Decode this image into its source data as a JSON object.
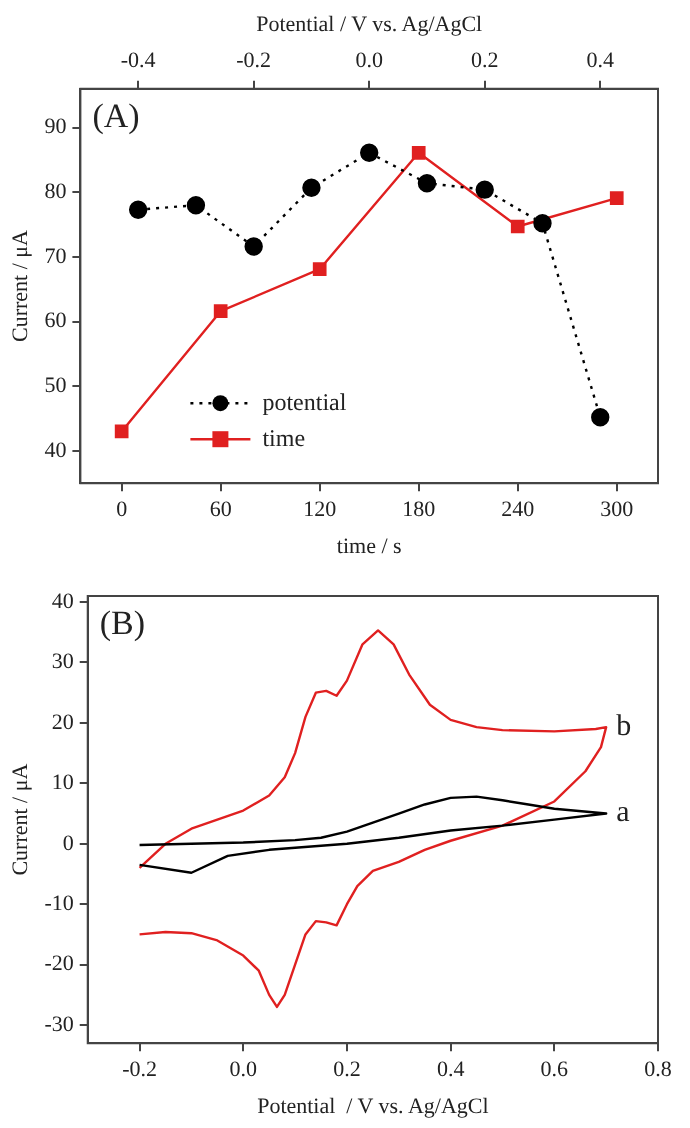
{
  "chart_data": [
    {
      "type": "line",
      "annotations": [
        "(A)"
      ],
      "xlabel": "time / s",
      "x2label": "Potential / V vs. Ag/AgCl",
      "ylabel": "Current / μA",
      "xlim": [
        -25,
        325
      ],
      "xticks": [
        0,
        60,
        120,
        180,
        240,
        300
      ],
      "x2lim": [
        -0.5,
        0.5
      ],
      "x2ticks": [
        -0.4,
        -0.2,
        {
          "value": 0,
          "label": "0.0"
        },
        0.2,
        0.4
      ],
      "ylim": [
        35,
        96
      ],
      "yticks": [
        40,
        50,
        60,
        70,
        80,
        90
      ],
      "grid": false,
      "legend": "bottom left",
      "series": [
        {
          "name": "potential",
          "color": "#000000",
          "axis": "x2",
          "marker": "circle",
          "line_style": "dotted",
          "x": [
            -0.4,
            -0.3,
            -0.2,
            -0.1,
            0.0,
            0.1,
            0.2,
            0.3,
            0.4
          ],
          "values": [
            77.3,
            78.0,
            71.6,
            80.7,
            86.1,
            81.4,
            80.4,
            75.2,
            45.2
          ]
        },
        {
          "name": "time",
          "color": "#e02020",
          "marker": "square",
          "line_style": "solid",
          "x": [
            0,
            60,
            120,
            180,
            240,
            300
          ],
          "values": [
            43.0,
            61.6,
            68.1,
            86.1,
            74.7,
            79.1
          ]
        }
      ]
    },
    {
      "type": "line",
      "annotations": [
        "(B)"
      ],
      "xlabel": "Potential  / V vs. Ag/AgCl",
      "ylabel": "Current / μA",
      "xlim": [
        -0.3,
        0.8
      ],
      "xticks": [
        -0.2,
        {
          "value": 0,
          "label": "0.0"
        },
        0.2,
        0.4,
        0.6,
        0.8
      ],
      "ylim": [
        -33,
        41
      ],
      "yticks": [
        -30,
        -20,
        -10,
        0,
        10,
        20,
        30,
        40
      ],
      "grid": false,
      "legend": false,
      "marker": "none",
      "line_style": "solid",
      "series": [
        {
          "name": "a",
          "color": "#000000",
          "x": [
            -0.2,
            0.0,
            0.1,
            0.15,
            0.2,
            0.25,
            0.3,
            0.35,
            0.4,
            0.45,
            0.5,
            0.55,
            0.6,
            0.7,
            0.6,
            0.5,
            0.4,
            0.3,
            0.2,
            0.05,
            -0.03,
            -0.1,
            -0.2
          ],
          "values": [
            -0.2,
            0.2,
            0.6,
            1.0,
            2.0,
            3.5,
            5.0,
            6.5,
            7.6,
            7.8,
            7.2,
            6.5,
            5.8,
            5.0,
            4.0,
            3.0,
            2.2,
            1.0,
            0.0,
            -1.0,
            -2.0,
            -4.8,
            -3.5
          ]
        },
        {
          "name": "b",
          "color": "#e02020",
          "x": [
            -0.2,
            -0.15,
            -0.1,
            -0.05,
            0.0,
            0.05,
            0.08,
            0.1,
            0.12,
            0.14,
            0.16,
            0.18,
            0.2,
            0.23,
            0.26,
            0.29,
            0.32,
            0.36,
            0.4,
            0.45,
            0.5,
            0.6,
            0.68,
            0.7,
            0.69,
            0.66,
            0.6,
            0.5,
            0.4,
            0.35,
            0.3,
            0.25,
            0.22,
            0.2,
            0.18,
            0.16,
            0.14,
            0.12,
            0.1,
            0.08,
            0.065,
            0.05,
            0.03,
            0.0,
            -0.05,
            -0.1,
            -0.15,
            -0.2
          ],
          "values": [
            -4,
            0,
            2.5,
            4,
            5.5,
            8,
            11,
            15,
            21,
            25,
            25.3,
            24.5,
            27,
            33,
            35.3,
            33,
            28,
            23,
            20.5,
            19.3,
            18.8,
            18.6,
            19,
            19.3,
            16,
            12,
            7,
            3,
            0.5,
            -1,
            -3,
            -4.5,
            -7,
            -10,
            -13.5,
            -13,
            -12.8,
            -15,
            -20,
            -25,
            -27,
            -25,
            -21,
            -18.5,
            -16,
            -14.8,
            -14.6,
            -15
          ]
        }
      ]
    }
  ]
}
